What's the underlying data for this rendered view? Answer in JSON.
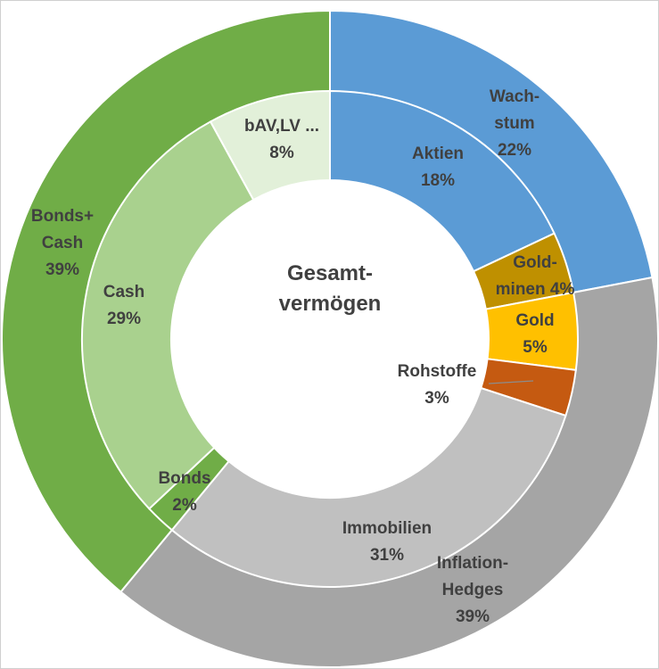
{
  "chart_data": {
    "type": "pie",
    "title": "Gesamtvermögen",
    "title_lines": [
      "Gesamt-",
      "vermögen"
    ],
    "rings": [
      {
        "name": "outer",
        "slices": [
          {
            "label_lines": [
              "Wach-",
              "stum",
              "22%"
            ],
            "value": 22,
            "color": "#5b9bd5"
          },
          {
            "label_lines": [
              "Inflation-",
              "Hedges",
              "39%"
            ],
            "value": 39,
            "color": "#a5a5a5"
          },
          {
            "label_lines": [
              "Bonds+",
              "Cash",
              "39%"
            ],
            "value": 39,
            "color": "#70ad47"
          }
        ]
      },
      {
        "name": "inner",
        "slices": [
          {
            "label_lines": [
              "Aktien",
              "18%"
            ],
            "value": 18,
            "color": "#5b9bd5"
          },
          {
            "label_lines": [
              "Gold-",
              "minen 4%"
            ],
            "value": 4,
            "color": "#bf9000"
          },
          {
            "label_lines": [
              "Gold",
              "5%"
            ],
            "value": 5,
            "color": "#ffc000"
          },
          {
            "label_lines": [
              "Rohstoffe",
              "3%"
            ],
            "value": 3,
            "color": "#c55a11"
          },
          {
            "label_lines": [
              "Immobilien",
              "31%"
            ],
            "value": 31,
            "color": "#c0c0c0"
          },
          {
            "label_lines": [
              "Bonds",
              "2%"
            ],
            "value": 2,
            "color": "#70ad47"
          },
          {
            "label_lines": [
              "Cash",
              "29%"
            ],
            "value": 29,
            "color": "#a9d18e"
          },
          {
            "label_lines": [
              "bAV,LV ...",
              "8%"
            ],
            "value": 8,
            "color": "#e2f0d9"
          }
        ]
      }
    ],
    "legend": "none"
  }
}
